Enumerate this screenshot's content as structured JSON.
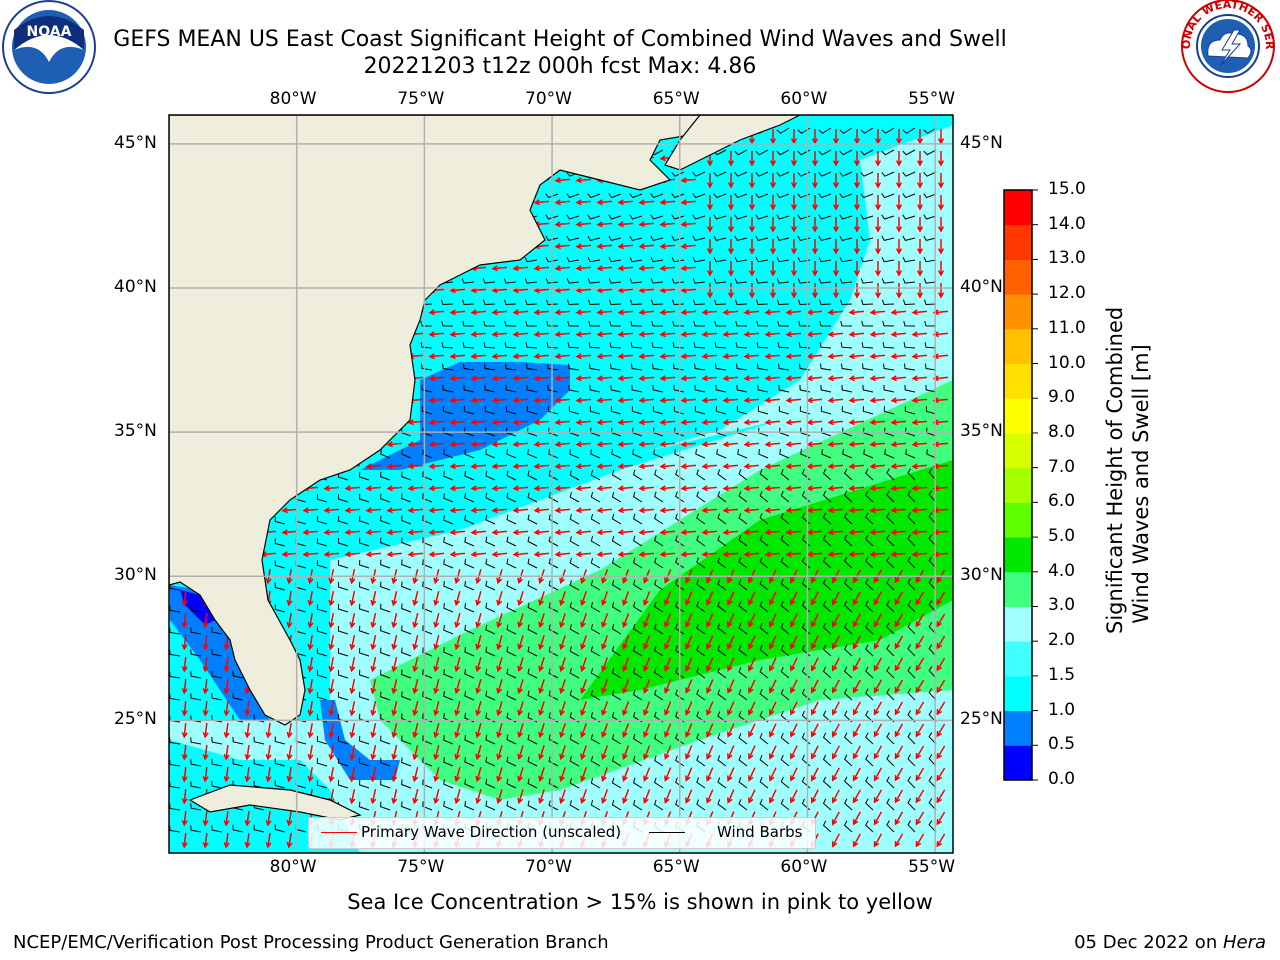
{
  "title": {
    "line1": "GEFS MEAN US East Coast Significant Height of Combined Wind Waves and Swell",
    "line2": "20221203 t12z 000h fcst   Max: 4.86"
  },
  "logos": {
    "left": "noaa-logo",
    "right": "national-weather-service-logo",
    "right_text": "NATIONAL WEATHER SERVICE"
  },
  "map": {
    "lon_ticks": [
      "80°W",
      "75°W",
      "70°W",
      "65°W",
      "60°W",
      "55°W"
    ],
    "lat_ticks": [
      "45°N",
      "40°N",
      "35°N",
      "30°N",
      "25°N"
    ],
    "lon_range": [
      -85,
      -54.3
    ],
    "lat_range": [
      20.4,
      46
    ],
    "colors": {
      "land": "#efeddc",
      "ocean": "#00ffff",
      "grid": "#b0b0b0",
      "wave_arrow": "#ff0000",
      "wind_barb": "#000000"
    }
  },
  "legend": {
    "primary_wave": "Primary Wave Direction (unscaled)",
    "wind_barbs": "Wind Barbs",
    "wave_color": "#ff0000",
    "barb_color": "#000000"
  },
  "colorbar": {
    "title_line1": "Significant Height of Combined",
    "title_line2": "Wind Waves and Swell [m]",
    "labels": [
      "15.0",
      "14.0",
      "13.0",
      "12.0",
      "11.0",
      "10.0",
      "9.0",
      "8.0",
      "7.0",
      "6.0",
      "5.0",
      "4.0",
      "3.0",
      "2.0",
      "1.5",
      "1.0",
      "0.5",
      "0.0"
    ],
    "colors": [
      "#0000ff",
      "#0080ff",
      "#00ffff",
      "#40ffff",
      "#a0ffff",
      "#40ff80",
      "#00e800",
      "#60ff00",
      "#a8ff00",
      "#d8ff00",
      "#ffff00",
      "#ffe000",
      "#ffc000",
      "#ff9000",
      "#ff6000",
      "#ff3800",
      "#ff0000"
    ]
  },
  "subtitle": "Sea Ice Concentration > 15% is shown in pink to yellow",
  "footer": {
    "left": "NCEP/EMC/Verification Post Processing Product Generation Branch",
    "right_date": "05 Dec 2022 on ",
    "right_machine": "Hera"
  }
}
